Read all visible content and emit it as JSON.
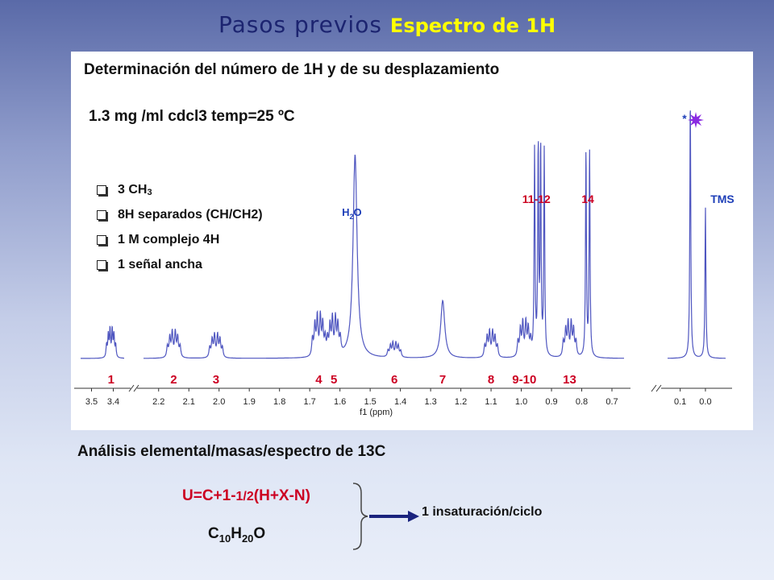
{
  "slide": {
    "title_a": "Pasos previos",
    "title_b": "Espectro de 1H",
    "panel_heading": "Determinación del número de 1H y de su desplazamiento",
    "conditions": "1.3 mg /ml cdcl3 temp=25 ºC",
    "bullets": [
      {
        "label": "3 CH",
        "sub": "3"
      },
      {
        "label": "8H separados (CH/CH2)"
      },
      {
        "label": "1 M complejo 4H"
      },
      {
        "label": "1 señal ancha"
      }
    ],
    "section2": "Análisis elemental/masas/espectro de 13C",
    "formula_pre": "U=C+1-",
    "formula_frac": "1/2",
    "formula_post": "(H+X-N)",
    "molecule": {
      "c": "C",
      "c_sub": "10",
      "h": "H",
      "h_sub": "20",
      "o": "O"
    },
    "result": "1 insaturación/ciclo"
  },
  "chart_data": {
    "type": "line",
    "xlabel": "f1 (ppm)",
    "ylabel": "",
    "x_reversed": true,
    "x_ticks": [
      "3.5",
      "3.4",
      "2.2",
      "2.1",
      "2.0",
      "1.9",
      "1.8",
      "1.7",
      "1.6",
      "1.5",
      "1.4",
      "1.3",
      "1.2",
      "1.1",
      "1.0",
      "0.9",
      "0.8",
      "0.7",
      "0.1",
      "0.0"
    ],
    "x_axis_breaks": [
      "between 3.4 and 2.2",
      "between 0.7 and 0.1"
    ],
    "peak_labels": [
      {
        "label": "1",
        "ppm": 3.41,
        "color": "#cc0022"
      },
      {
        "label": "2",
        "ppm": 2.15,
        "color": "#cc0022"
      },
      {
        "label": "3",
        "ppm": 2.01,
        "color": "#cc0022"
      },
      {
        "label": "4",
        "ppm": 1.67,
        "color": "#cc0022"
      },
      {
        "label": "5",
        "ppm": 1.62,
        "color": "#cc0022"
      },
      {
        "label": "6",
        "ppm": 1.42,
        "color": "#cc0022"
      },
      {
        "label": "7",
        "ppm": 1.26,
        "color": "#cc0022"
      },
      {
        "label": "8",
        "ppm": 1.1,
        "color": "#cc0022"
      },
      {
        "label": "9-10",
        "ppm": 0.99,
        "color": "#cc0022"
      },
      {
        "label": "13",
        "ppm": 0.84,
        "color": "#cc0022"
      }
    ],
    "upper_labels": [
      {
        "label": "11-12",
        "ppm": 0.95,
        "color": "#cc0022"
      },
      {
        "label": "14",
        "ppm": 0.78,
        "color": "#cc0022"
      },
      {
        "label": "TMS",
        "ppm": 0.0,
        "color": "#1e3fb8"
      },
      {
        "label": "*",
        "ppm": 0.06,
        "color": "#1e3fb8"
      }
    ],
    "annotations": [
      {
        "label": "H",
        "sub": "2",
        "suffix": "O",
        "ppm": 1.55,
        "color": "#1e3fb8"
      }
    ],
    "peaks": [
      {
        "ppm": 3.41,
        "rel": 0.1,
        "type": "multiplet"
      },
      {
        "ppm": 2.15,
        "rel": 0.09,
        "type": "multiplet"
      },
      {
        "ppm": 2.01,
        "rel": 0.08,
        "type": "multiplet"
      },
      {
        "ppm": 1.67,
        "rel": 0.14,
        "type": "multiplet"
      },
      {
        "ppm": 1.62,
        "rel": 0.13,
        "type": "multiplet"
      },
      {
        "ppm": 1.55,
        "rel": 0.74,
        "type": "broad"
      },
      {
        "ppm": 1.42,
        "rel": 0.05,
        "type": "multiplet"
      },
      {
        "ppm": 1.26,
        "rel": 0.21,
        "type": "broad"
      },
      {
        "ppm": 1.1,
        "rel": 0.09,
        "type": "multiplet"
      },
      {
        "ppm": 0.99,
        "rel": 0.12,
        "type": "multiplet"
      },
      {
        "ppm": 0.95,
        "rel": 1.0,
        "type": "doublet"
      },
      {
        "ppm": 0.93,
        "rel": 1.0,
        "type": "doublet"
      },
      {
        "ppm": 0.84,
        "rel": 0.12,
        "type": "multiplet"
      },
      {
        "ppm": 0.78,
        "rel": 1.0,
        "type": "doublet"
      },
      {
        "ppm": 0.06,
        "rel": 0.95,
        "type": "singlet"
      },
      {
        "ppm": 0.0,
        "rel": 0.55,
        "type": "singlet"
      }
    ],
    "colors": {
      "trace": "#4f56c0",
      "peak_label": "#cc0022",
      "assignment": "#1e3fb8",
      "star": "#8a2be2"
    }
  }
}
